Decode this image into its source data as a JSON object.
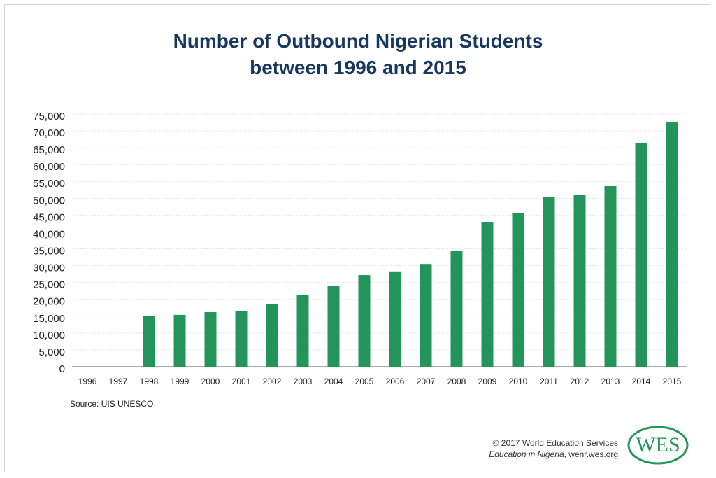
{
  "chart_data": {
    "type": "bar",
    "title": "Number of Outbound Nigerian Students between 1996 and 2015",
    "categories": [
      "1996",
      "1997",
      "1998",
      "1999",
      "2000",
      "2001",
      "2002",
      "2003",
      "2004",
      "2005",
      "2006",
      "2007",
      "2008",
      "2009",
      "2010",
      "2011",
      "2012",
      "2013",
      "2014",
      "2015"
    ],
    "values": [
      null,
      null,
      15000,
      15400,
      16200,
      16600,
      18500,
      21400,
      23900,
      27200,
      28300,
      30500,
      34500,
      43000,
      45700,
      50300,
      50900,
      53600,
      66500,
      72500
    ],
    "color": "#23955a",
    "ylim": [
      0,
      75000
    ],
    "yticks": [
      0,
      {
        "value": 5000,
        "label": "5,000"
      },
      {
        "value": 10000,
        "label": "10,000"
      },
      {
        "value": 15000,
        "label": "15,000"
      },
      {
        "value": 20000,
        "label": "20,000"
      },
      {
        "value": 25000,
        "label": "25,000"
      },
      {
        "value": 30000,
        "label": "30,000"
      },
      {
        "value": 35000,
        "label": "35,000"
      },
      {
        "value": 40000,
        "label": "40,000"
      },
      {
        "value": 45000,
        "label": "45,000"
      },
      {
        "value": 50000,
        "label": "50,000"
      },
      {
        "value": 55000,
        "label": "55,000"
      },
      {
        "value": 60000,
        "label": "60,000"
      },
      {
        "value": 65000,
        "label": "65,000"
      },
      {
        "value": 70000,
        "label": "70,000"
      },
      {
        "value": 75000,
        "label": "75,000"
      }
    ],
    "grid": true,
    "source": "Source: UIS UNESCO"
  },
  "footer": {
    "copyright": "© 2017 World Education Services",
    "publication": "Education in Nigeria",
    "site": ", wenr.wes.org",
    "logo": "WES"
  }
}
